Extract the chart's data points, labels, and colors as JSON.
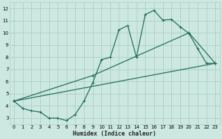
{
  "xlabel": "Humidex (Indice chaleur)",
  "bg_color": "#cde8e0",
  "grid_color": "#aacec5",
  "line_color": "#1e6b5a",
  "xlim": [
    -0.5,
    23.5
  ],
  "ylim": [
    2.5,
    12.5
  ],
  "xticks": [
    0,
    1,
    2,
    3,
    4,
    5,
    6,
    7,
    8,
    9,
    10,
    11,
    12,
    13,
    14,
    15,
    16,
    17,
    18,
    19,
    20,
    21,
    22,
    23
  ],
  "yticks": [
    3,
    4,
    5,
    6,
    7,
    8,
    9,
    10,
    11,
    12
  ],
  "line1_x": [
    0,
    1,
    2,
    3,
    4,
    5,
    6,
    7,
    8,
    9,
    10,
    11,
    12,
    13,
    14,
    15,
    16,
    17,
    18,
    19,
    20,
    21,
    22,
    23
  ],
  "line1_y": [
    4.4,
    3.8,
    3.6,
    3.5,
    3.0,
    3.0,
    2.8,
    3.3,
    4.4,
    5.9,
    7.8,
    8.0,
    10.25,
    10.6,
    8.0,
    11.5,
    11.85,
    11.05,
    11.1,
    10.5,
    9.95,
    8.7,
    7.5,
    7.5
  ],
  "line2_x": [
    0,
    23
  ],
  "line2_y": [
    4.4,
    7.5
  ],
  "line3_x": [
    0,
    9,
    20,
    23
  ],
  "line3_y": [
    4.4,
    6.5,
    10.0,
    7.5
  ]
}
